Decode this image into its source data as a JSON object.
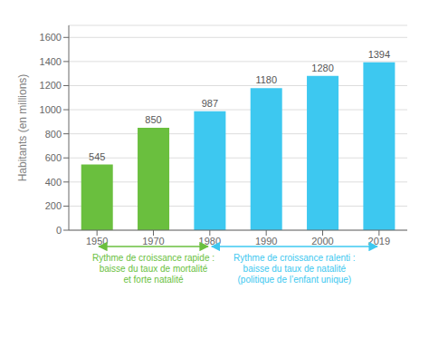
{
  "chart_data": {
    "type": "bar",
    "categories": [
      "1950",
      "1970",
      "1980",
      "1990",
      "2000",
      "2019"
    ],
    "values": [
      545,
      850,
      987,
      1180,
      1280,
      1394
    ],
    "colors": [
      "#6abf3e",
      "#6abf3e",
      "#3dc8f0",
      "#3dc8f0",
      "#3dc8f0",
      "#3dc8f0"
    ],
    "ylabel": "Habitants (en millions)",
    "ylim": [
      0,
      1700
    ],
    "yticks": [
      0,
      200,
      400,
      600,
      800,
      1000,
      1200,
      1400,
      1600
    ],
    "grid": true,
    "data_labels": true,
    "annotations": [
      {
        "text": "Rythme de croissance rapide :\nbaisse du taux de mortalité\net forte natalité",
        "color": "#6abf3e"
      },
      {
        "text": "Rythme de croissance ralenti :\nbaisse du taux de natalité\n(politique de l’enfant unique)",
        "color": "#3dc8f0"
      }
    ]
  }
}
